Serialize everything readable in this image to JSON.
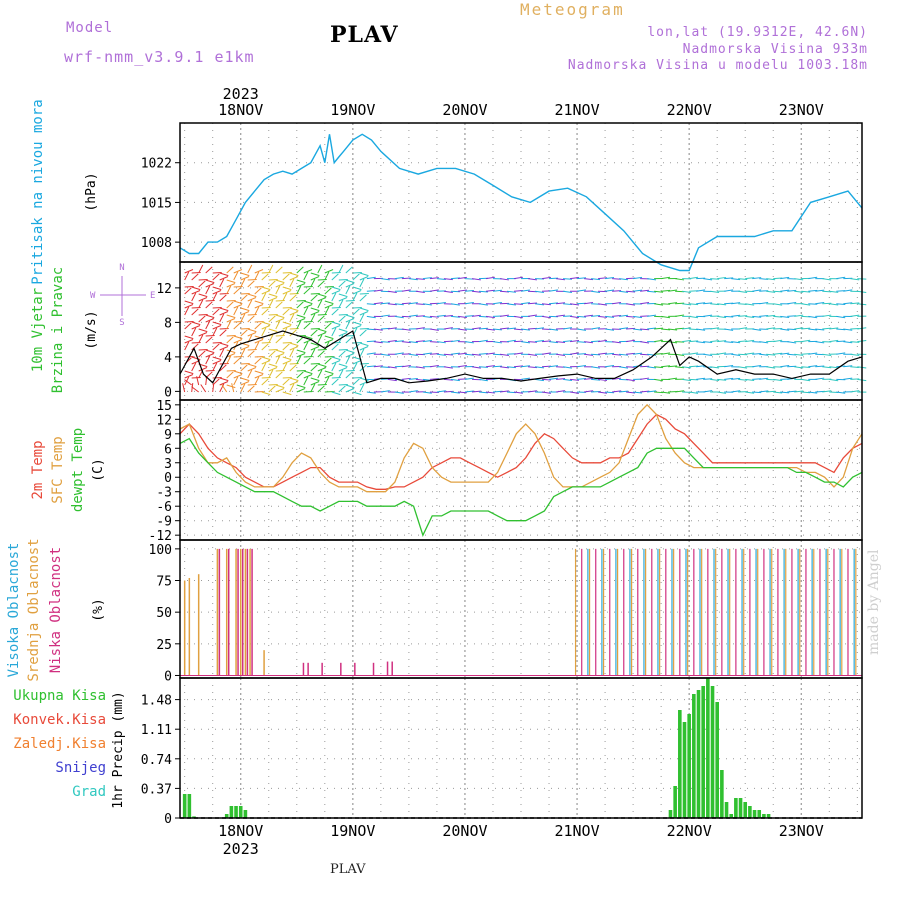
{
  "header": {
    "model_label": "Model",
    "model_name": "wrf-nmm_v3.9.1 e1km",
    "station": "PLAV",
    "meteogram_label": "Meteogram",
    "lonlat": "lon,lat (19.9312E, 42.6N)",
    "elevation": "Nadmorska Visina 933m",
    "model_elevation": "Nadmorska Visina u modelu 1003.18m",
    "footer_station": "PLAV",
    "credit": "made by Angel"
  },
  "timeline": {
    "top_year": "2023",
    "bottom_year": "2023",
    "day_labels": [
      "18NOV",
      "19NOV",
      "20NOV",
      "21NOV",
      "22NOV",
      "23NOV"
    ],
    "day_positions_hours": [
      0,
      24,
      48,
      72,
      96,
      120
    ],
    "start_hour": -13,
    "end_hour": 133
  },
  "colors": {
    "pressure": "#1aa8e0",
    "wind_speed": "#000000",
    "t2m": "#e84a3a",
    "tsfc": "#e0a040",
    "dewpt": "#30c030",
    "cloud_high": "#2aa8d8",
    "cloud_mid": "#e0a040",
    "cloud_low": "#d03080",
    "precip_total": "#30c030",
    "precip_conv": "#e84a3a",
    "precip_strat": "#f08030",
    "precip_snow": "#4040d0",
    "precip_grad": "#30c8c0",
    "grid": "#9a9a9a"
  },
  "panels": {
    "pressure": {
      "label_main": "Pritisak na nivou mora",
      "unit": "(hPa)",
      "ticks": [
        "1022",
        "1015",
        "1008"
      ],
      "tick_values": [
        1022,
        1015,
        1008
      ],
      "ylim": [
        1004.5,
        1029
      ]
    },
    "wind": {
      "label_main": "10m Vjetar",
      "label_sub": "Brzina i Pravac",
      "unit": "(m/s)",
      "compass": [
        "N",
        "W",
        "E",
        "S"
      ],
      "ticks": [
        "12",
        "8",
        "4",
        "0"
      ],
      "tick_values": [
        12,
        8,
        4,
        0
      ],
      "ylim": [
        -1,
        15
      ]
    },
    "temperature": {
      "label_1": "2m Temp",
      "label_2": "SFC Temp",
      "label_3": "dewpt Temp",
      "unit": "(C)",
      "ticks": [
        "15",
        "12",
        "9",
        "6",
        "3",
        "0",
        "-3",
        "-6",
        "-9",
        "-12"
      ],
      "tick_values": [
        15,
        12,
        9,
        6,
        3,
        0,
        -3,
        -6,
        -9,
        -12
      ],
      "ylim": [
        -13,
        16
      ]
    },
    "clouds": {
      "label_1": "Visoka Oblacnost",
      "label_2": "Srednja Oblacnost",
      "label_3": "Niska Oblacnost",
      "unit": "(%)",
      "ticks": [
        "100",
        "75",
        "50",
        "25",
        "0"
      ],
      "tick_values": [
        100,
        75,
        50,
        25,
        0
      ],
      "ylim": [
        -2,
        107
      ]
    },
    "precip": {
      "legend": [
        "Ukupna Kisa",
        "Konvek.Kisa",
        "Zaledj.Kisa",
        "Snijeg",
        "Grad"
      ],
      "unit": "1hr Precip (mm)",
      "ticks": [
        "1.48",
        "1.11",
        "0.74",
        "0.37",
        "0"
      ],
      "tick_values": [
        1.48,
        1.11,
        0.74,
        0.37,
        0
      ],
      "ylim": [
        0,
        1.75
      ]
    }
  },
  "chart_data": {
    "type": "line",
    "x_unit": "hours from 18 NOV 2023 00 UTC",
    "pressure_hpa": {
      "x": [
        -13,
        -11,
        -9,
        -7,
        -5,
        -3,
        -1,
        1,
        3,
        5,
        7,
        9,
        11,
        13,
        15,
        17,
        18,
        19,
        20,
        21,
        22,
        24,
        26,
        28,
        30,
        34,
        38,
        42,
        46,
        50,
        54,
        58,
        62,
        66,
        70,
        74,
        78,
        82,
        86,
        90,
        94,
        96,
        98,
        102,
        106,
        110,
        114,
        118,
        122,
        126,
        130,
        133
      ],
      "y": [
        1007,
        1006,
        1006,
        1008,
        1008,
        1009,
        1012,
        1015,
        1017,
        1019,
        1020,
        1020.5,
        1020,
        1021,
        1022,
        1025,
        1022,
        1027,
        1022,
        1023,
        1024,
        1026,
        1027,
        1026,
        1024,
        1021,
        1020,
        1021,
        1021,
        1020,
        1018,
        1016,
        1015,
        1017,
        1017.5,
        1016,
        1013,
        1010,
        1006,
        1004,
        1003,
        1003,
        1007,
        1009,
        1009,
        1009,
        1010,
        1010,
        1015,
        1016,
        1017,
        1014
      ]
    },
    "wind_speed_ms": {
      "x": [
        -13,
        -10,
        -8,
        -6,
        -4,
        -2,
        0,
        3,
        6,
        9,
        12,
        15,
        18,
        21,
        24,
        27,
        30,
        33,
        36,
        40,
        44,
        48,
        52,
        56,
        60,
        64,
        68,
        72,
        76,
        80,
        84,
        88,
        90,
        92,
        94,
        96,
        98,
        102,
        106,
        110,
        114,
        118,
        122,
        126,
        130,
        133
      ],
      "y": [
        2,
        5,
        2,
        1,
        3,
        5,
        5.5,
        6,
        6.5,
        7,
        6.5,
        6,
        5,
        6,
        7,
        1,
        1.5,
        1.5,
        1,
        1.2,
        1.5,
        2,
        1.5,
        1.5,
        1.2,
        1.5,
        1.8,
        2,
        1.5,
        1.5,
        2.5,
        4,
        5,
        6,
        3,
        4,
        3.5,
        2,
        2.5,
        2,
        2,
        1.5,
        2,
        2,
        3.5,
        4
      ]
    },
    "temperature_c": {
      "x": [
        -13,
        -11,
        -9,
        -7,
        -5,
        -3,
        -1,
        1,
        3,
        5,
        7,
        9,
        11,
        13,
        15,
        17,
        19,
        21,
        23,
        25,
        27,
        29,
        31,
        33,
        35,
        37,
        39,
        41,
        43,
        45,
        47,
        49,
        51,
        53,
        55,
        57,
        59,
        61,
        63,
        65,
        67,
        69,
        71,
        73,
        75,
        77,
        79,
        81,
        83,
        85,
        87,
        89,
        91,
        93,
        95,
        97,
        99,
        101,
        103,
        105,
        107,
        109,
        111,
        113,
        115,
        117,
        119,
        121,
        123,
        125,
        127,
        129,
        131,
        133
      ],
      "series": [
        {
          "name": "2m Temp",
          "y": [
            9,
            11,
            9,
            6,
            4,
            3,
            2,
            0,
            -1,
            -2,
            -2,
            -1,
            0,
            1,
            2,
            2,
            0,
            -1,
            -1,
            -1,
            -2,
            -2.5,
            -2.5,
            -2,
            -2,
            -1,
            0,
            2,
            3,
            4,
            4,
            3,
            2,
            1,
            0,
            1,
            2,
            4,
            7,
            9,
            8,
            6,
            4,
            3,
            3,
            3,
            4,
            4,
            5,
            8,
            11,
            13,
            12,
            10,
            9,
            7,
            5,
            3,
            3,
            3,
            3,
            3,
            3,
            3,
            3,
            3,
            3,
            3,
            3,
            2,
            1,
            4,
            6,
            7
          ]
        },
        {
          "name": "SFC Temp",
          "y": [
            10,
            11,
            6,
            3,
            3,
            4,
            1,
            -1,
            -2,
            -2,
            -2,
            0,
            3,
            5,
            4,
            1,
            -1,
            -2,
            -2,
            -2,
            -3,
            -3,
            -3,
            -1,
            4,
            7,
            6,
            2,
            0,
            -1,
            -1,
            -1,
            -1,
            -1,
            1,
            5,
            9,
            11,
            9,
            5,
            0,
            -2,
            -2,
            -2,
            -1,
            0,
            1,
            3,
            8,
            13,
            15,
            13,
            8,
            5,
            3,
            2,
            2,
            2,
            2,
            2,
            2,
            2,
            2,
            2,
            2,
            2,
            2,
            1,
            1,
            0,
            -2,
            0,
            6,
            9
          ]
        },
        {
          "name": "dewpt Temp",
          "y": [
            7,
            8,
            5,
            3,
            1,
            0,
            -1,
            -2,
            -3,
            -3,
            -3,
            -4,
            -5,
            -6,
            -6,
            -7,
            -6,
            -5,
            -5,
            -5,
            -6,
            -6,
            -6,
            -6,
            -5,
            -6,
            -12,
            -8,
            -8,
            -7,
            -7,
            -7,
            -7,
            -7,
            -8,
            -9,
            -9,
            -9,
            -8,
            -7,
            -4,
            -3,
            -2,
            -2,
            -2,
            -2,
            -1,
            0,
            1,
            2,
            5,
            6,
            6,
            6,
            6,
            4,
            2,
            2,
            2,
            2,
            2,
            2,
            2,
            2,
            2,
            2,
            1,
            1,
            0,
            -1,
            -1,
            -2,
            0,
            1
          ]
        }
      ]
    },
    "cloud_cover_pct": {
      "categories_hours": [
        -12,
        -11,
        -9,
        -5,
        -3,
        -1,
        0,
        1,
        2,
        3,
        5,
        13,
        14,
        17,
        21,
        24,
        28,
        31,
        32
      ],
      "series": [
        {
          "name": "Srednja Oblacnost",
          "values": [
            75,
            77,
            80,
            100,
            100,
            100,
            100,
            100,
            100,
            0,
            20,
            0,
            0,
            0,
            0,
            0,
            0,
            0,
            0
          ]
        },
        {
          "name": "Niska Oblacnost",
          "values": [
            0,
            0,
            0,
            100,
            100,
            100,
            100,
            100,
            100,
            0,
            0,
            10,
            10,
            10,
            10,
            10,
            10,
            11,
            11
          ]
        },
        {
          "name": "Visoka Oblacnost",
          "values": [
            0,
            0,
            0,
            0,
            0,
            0,
            0,
            0,
            0,
            0,
            0,
            0,
            0,
            0,
            0,
            0,
            0,
            0,
            0
          ]
        }
      ],
      "note_overcast_from_hour": 72,
      "note_overcast_to_hour": 132,
      "overcast_value": 100
    },
    "precip_mm": {
      "categories_hours": [
        -12,
        -11,
        -10,
        -3,
        -2,
        -1,
        0,
        1,
        92,
        93,
        94,
        95,
        96,
        97,
        98,
        99,
        100,
        101,
        102,
        103,
        104,
        105,
        106,
        107,
        108,
        109,
        110,
        111,
        112,
        113
      ],
      "series": [
        {
          "name": "Ukupna Kisa",
          "values": [
            0.3,
            0.3,
            0.02,
            0.05,
            0.15,
            0.15,
            0.15,
            0.1,
            0.1,
            0.4,
            1.35,
            1.2,
            1.3,
            1.55,
            1.6,
            1.65,
            1.75,
            1.65,
            1.45,
            0.6,
            0.2,
            0.05,
            0.25,
            0.25,
            0.2,
            0.15,
            0.1,
            0.1,
            0.05,
            0.05
          ]
        }
      ]
    }
  }
}
